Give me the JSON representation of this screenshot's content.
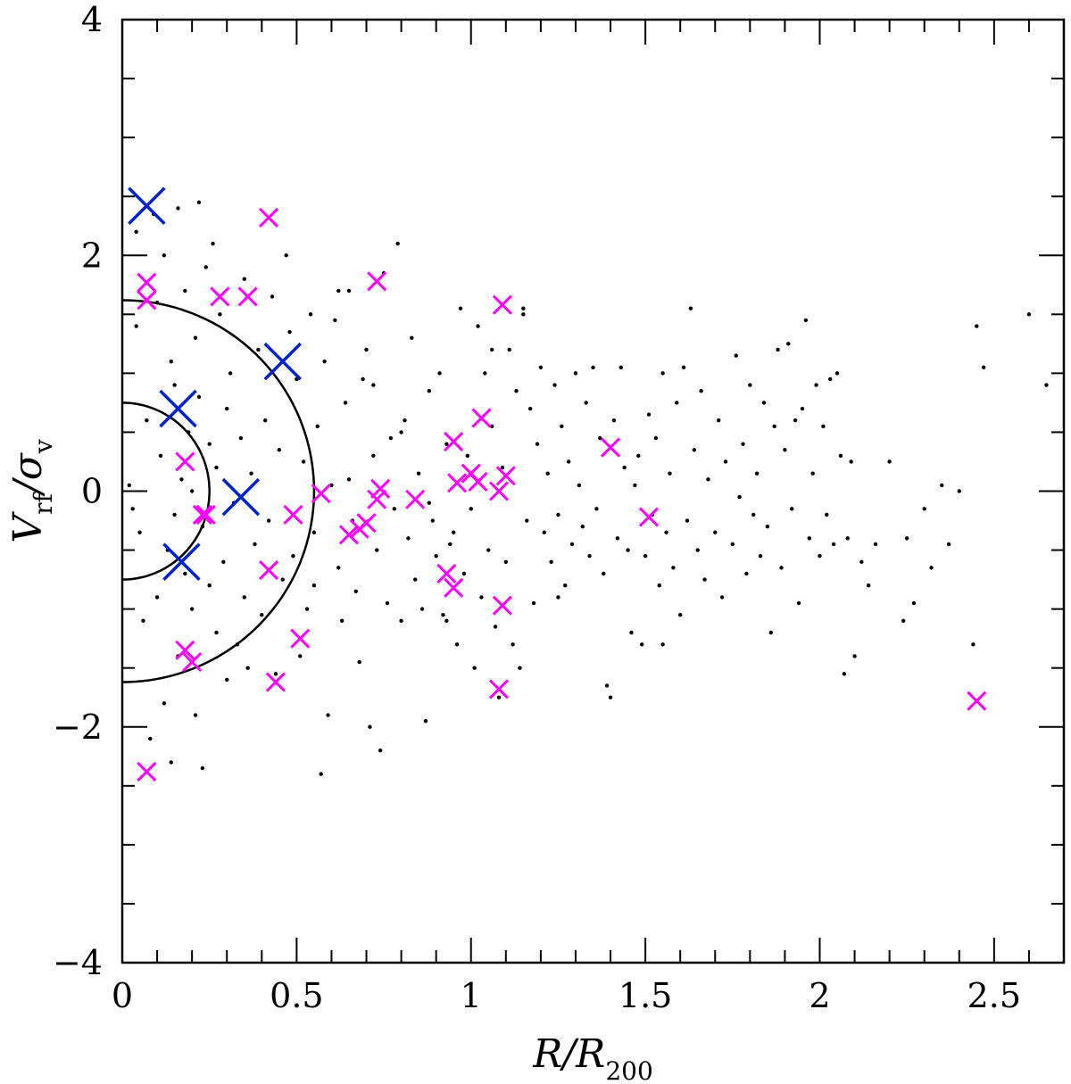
{
  "chart_data": {
    "type": "scatter",
    "title": "",
    "xlabel": {
      "main": "R/R",
      "sub": "200"
    },
    "ylabel": {
      "main": "V",
      "sub1": "rf",
      "mid": "/σ",
      "sub2": "v"
    },
    "xlim": [
      0,
      2.7
    ],
    "ylim": [
      -4,
      4
    ],
    "xticks_major": [
      0,
      0.5,
      1,
      1.5,
      2,
      2.5
    ],
    "xtick_labels": [
      "0",
      "0.5",
      "1",
      "1.5",
      "2",
      "2.5"
    ],
    "xtick_minor_step": 0.1,
    "yticks_major": [
      -4,
      -2,
      0,
      2,
      4
    ],
    "ytick_labels": [
      "−4",
      "−2",
      "0",
      "2",
      "4"
    ],
    "ytick_minor_step": 0.5,
    "grid": false,
    "colors": {
      "points": "#000000",
      "magenta": "#ff00ff",
      "blue": "#0022cc",
      "contour": "#000000"
    },
    "contours": [
      {
        "name": "inner",
        "r_max": 0.25,
        "v_max": 0.75
      },
      {
        "name": "outer",
        "r_max": 0.55,
        "v_max": 1.62
      }
    ],
    "series": [
      {
        "marker": "small-dot",
        "points": [
          [
            0.02,
            0.05
          ],
          [
            0.03,
            -0.15
          ],
          [
            0.04,
            2.2
          ],
          [
            0.05,
            -0.35
          ],
          [
            0.04,
            1.4
          ],
          [
            0.06,
            -1.1
          ],
          [
            0.07,
            0.6
          ],
          [
            0.08,
            -2.1
          ],
          [
            0.09,
            2.35
          ],
          [
            0.1,
            1.6
          ],
          [
            0.1,
            -0.9
          ],
          [
            0.11,
            0.3
          ],
          [
            0.12,
            -1.8
          ],
          [
            0.12,
            2.0
          ],
          [
            0.13,
            -0.5
          ],
          [
            0.14,
            1.1
          ],
          [
            0.14,
            -2.3
          ],
          [
            0.15,
            0.9
          ],
          [
            0.15,
            -0.2
          ],
          [
            0.16,
            -1.4
          ],
          [
            0.16,
            2.4
          ],
          [
            0.17,
            0.1
          ],
          [
            0.18,
            -0.7
          ],
          [
            0.18,
            1.7
          ],
          [
            0.19,
            0.5
          ],
          [
            0.2,
            -1.0
          ],
          [
            0.2,
            0.0
          ],
          [
            0.21,
            1.3
          ],
          [
            0.21,
            -1.9
          ],
          [
            0.22,
            0.8
          ],
          [
            0.22,
            2.45
          ],
          [
            0.23,
            -0.3
          ],
          [
            0.23,
            -2.35
          ],
          [
            0.24,
            1.9
          ],
          [
            0.25,
            -0.8
          ],
          [
            0.25,
            0.4
          ],
          [
            0.26,
            2.1
          ],
          [
            0.27,
            -1.2
          ],
          [
            0.27,
            0.2
          ],
          [
            0.28,
            1.5
          ],
          [
            0.29,
            -0.6
          ],
          [
            0.3,
            0.7
          ],
          [
            0.3,
            -1.6
          ],
          [
            0.31,
            1.0
          ],
          [
            0.32,
            -0.1
          ],
          [
            0.33,
            -1.3
          ],
          [
            0.34,
            0.45
          ],
          [
            0.35,
            1.8
          ],
          [
            0.35,
            -0.9
          ],
          [
            0.36,
            -1.5
          ],
          [
            0.37,
            0.15
          ],
          [
            0.38,
            -0.45
          ],
          [
            0.39,
            1.2
          ],
          [
            0.4,
            -1.05
          ],
          [
            0.41,
            0.6
          ],
          [
            0.42,
            -0.25
          ],
          [
            0.43,
            1.65
          ],
          [
            0.44,
            -1.55
          ],
          [
            0.45,
            0.35
          ],
          [
            0.46,
            -0.75
          ],
          [
            0.47,
            2.0
          ],
          [
            0.48,
            1.35
          ],
          [
            0.49,
            -0.55
          ],
          [
            0.5,
            0.95
          ],
          [
            0.51,
            -1.4
          ],
          [
            0.52,
            0.25
          ],
          [
            0.53,
            -1.0
          ],
          [
            0.54,
            1.5
          ],
          [
            0.55,
            -0.35
          ],
          [
            0.56,
            0.55
          ],
          [
            0.57,
            -2.4
          ],
          [
            0.58,
            1.1
          ],
          [
            0.59,
            -1.9
          ],
          [
            0.6,
            0.05
          ],
          [
            0.61,
            1.45
          ],
          [
            0.62,
            -0.65
          ],
          [
            0.63,
            -1.1
          ],
          [
            0.64,
            0.75
          ],
          [
            0.65,
            1.7
          ],
          [
            0.66,
            -0.25
          ],
          [
            0.67,
            -0.85
          ],
          [
            0.68,
            -1.45
          ],
          [
            0.69,
            0.95
          ],
          [
            0.7,
            1.2
          ],
          [
            0.71,
            -2.0
          ],
          [
            0.72,
            0.3
          ],
          [
            0.73,
            -0.5
          ],
          [
            0.74,
            -2.2
          ],
          [
            0.75,
            1.85
          ],
          [
            0.76,
            -0.95
          ],
          [
            0.77,
            0.45
          ],
          [
            0.78,
            -0.15
          ],
          [
            0.79,
            2.1
          ],
          [
            0.8,
            -1.1
          ],
          [
            0.81,
            0.6
          ],
          [
            0.82,
            -0.4
          ],
          [
            0.83,
            1.3
          ],
          [
            0.84,
            -0.75
          ],
          [
            0.85,
            0.15
          ],
          [
            0.86,
            -1.0
          ],
          [
            0.87,
            -1.95
          ],
          [
            0.88,
            0.85
          ],
          [
            0.89,
            -0.25
          ],
          [
            0.9,
            -0.55
          ],
          [
            0.91,
            1.0
          ],
          [
            0.92,
            -1.05
          ],
          [
            0.93,
            0.4
          ],
          [
            0.94,
            -0.45
          ],
          [
            0.95,
            -0.35
          ],
          [
            0.96,
            -1.3
          ],
          [
            0.97,
            1.55
          ],
          [
            0.98,
            -0.7
          ],
          [
            0.99,
            0.3
          ],
          [
            1.0,
            -0.15
          ],
          [
            1.01,
            -1.5
          ],
          [
            1.02,
            1.4
          ],
          [
            1.03,
            -0.9
          ],
          [
            1.04,
            1.0
          ],
          [
            1.05,
            -0.5
          ],
          [
            1.06,
            0.55
          ],
          [
            1.07,
            -1.15
          ],
          [
            1.08,
            -1.75
          ],
          [
            1.09,
            0.2
          ],
          [
            1.1,
            -0.6
          ],
          [
            1.11,
            1.2
          ],
          [
            1.12,
            -1.3
          ],
          [
            1.13,
            0.85
          ],
          [
            1.14,
            -1.5
          ],
          [
            1.15,
            1.5
          ],
          [
            1.16,
            -0.25
          ],
          [
            1.17,
            0.7
          ],
          [
            1.18,
            -0.95
          ],
          [
            1.19,
            0.4
          ],
          [
            1.2,
            1.05
          ],
          [
            1.21,
            -0.35
          ],
          [
            1.22,
            0.15
          ],
          [
            1.23,
            -0.6
          ],
          [
            1.24,
            0.9
          ],
          [
            1.25,
            -0.2
          ],
          [
            1.26,
            0.55
          ],
          [
            1.27,
            -0.8
          ],
          [
            1.28,
            0.25
          ],
          [
            1.29,
            -0.45
          ],
          [
            1.3,
            1.0
          ],
          [
            1.31,
            0.05
          ],
          [
            1.32,
            -0.3
          ],
          [
            1.33,
            0.75
          ],
          [
            1.34,
            -0.55
          ],
          [
            1.35,
            1.05
          ],
          [
            1.36,
            -0.15
          ],
          [
            1.37,
            0.45
          ],
          [
            1.38,
            -0.7
          ],
          [
            1.39,
            -1.65
          ],
          [
            1.4,
            -1.75
          ],
          [
            1.41,
            0.6
          ],
          [
            1.42,
            -0.4
          ],
          [
            1.43,
            1.05
          ],
          [
            1.44,
            0.2
          ],
          [
            1.45,
            -0.5
          ],
          [
            1.46,
            -1.2
          ],
          [
            1.47,
            0.05
          ],
          [
            1.48,
            0.3
          ],
          [
            1.49,
            -1.3
          ],
          [
            1.5,
            -0.55
          ],
          [
            1.51,
            0.65
          ],
          [
            1.52,
            -0.2
          ],
          [
            1.53,
            0.45
          ],
          [
            1.54,
            -0.8
          ],
          [
            1.55,
            1.0
          ],
          [
            1.56,
            -0.35
          ],
          [
            1.57,
            0.15
          ],
          [
            1.58,
            -0.65
          ],
          [
            1.59,
            0.75
          ],
          [
            1.6,
            -1.05
          ],
          [
            1.61,
            1.05
          ],
          [
            1.62,
            -0.25
          ],
          [
            1.63,
            1.55
          ],
          [
            1.64,
            0.35
          ],
          [
            1.65,
            -0.5
          ],
          [
            1.66,
            0.85
          ],
          [
            1.67,
            -0.75
          ],
          [
            1.68,
            0.1
          ],
          [
            1.7,
            -0.35
          ],
          [
            1.71,
            0.6
          ],
          [
            1.72,
            -0.9
          ],
          [
            1.73,
            0.25
          ],
          [
            1.75,
            -0.45
          ],
          [
            1.76,
            1.15
          ],
          [
            1.77,
            -0.05
          ],
          [
            1.78,
            0.4
          ],
          [
            1.79,
            -0.7
          ],
          [
            1.8,
            0.9
          ],
          [
            1.81,
            -0.2
          ],
          [
            1.82,
            0.15
          ],
          [
            1.83,
            -0.55
          ],
          [
            1.84,
            0.75
          ],
          [
            1.85,
            -0.3
          ],
          [
            1.86,
            -1.2
          ],
          [
            1.87,
            0.55
          ],
          [
            1.88,
            1.2
          ],
          [
            1.89,
            -0.65
          ],
          [
            1.9,
            0.35
          ],
          [
            1.91,
            1.25
          ],
          [
            1.92,
            -0.15
          ],
          [
            1.93,
            0.6
          ],
          [
            1.94,
            -0.95
          ],
          [
            1.95,
            0.7
          ],
          [
            1.96,
            1.45
          ],
          [
            1.97,
            -0.4
          ],
          [
            1.98,
            0.15
          ],
          [
            1.99,
            0.9
          ],
          [
            2.0,
            -0.55
          ],
          [
            2.01,
            0.55
          ],
          [
            2.02,
            -0.2
          ],
          [
            2.03,
            0.95
          ],
          [
            2.04,
            -0.45
          ],
          [
            2.05,
            1.0
          ],
          [
            2.06,
            0.3
          ],
          [
            2.07,
            -1.55
          ],
          [
            2.08,
            -0.4
          ],
          [
            2.09,
            0.25
          ],
          [
            2.1,
            -1.4
          ],
          [
            2.12,
            -0.6
          ],
          [
            2.14,
            -0.8
          ],
          [
            2.16,
            -0.45
          ],
          [
            2.2,
            0.25
          ],
          [
            2.24,
            -1.1
          ],
          [
            2.25,
            -0.4
          ],
          [
            2.27,
            -0.95
          ],
          [
            2.3,
            -0.15
          ],
          [
            2.32,
            -0.65
          ],
          [
            2.35,
            0.05
          ],
          [
            2.37,
            -0.45
          ],
          [
            2.4,
            0.0
          ],
          [
            2.44,
            -1.3
          ],
          [
            2.45,
            1.4
          ],
          [
            2.47,
            1.05
          ],
          [
            2.6,
            1.5
          ],
          [
            2.65,
            0.9
          ],
          [
            1.55,
            -1.3
          ],
          [
            1.15,
            1.55
          ],
          [
            0.62,
            1.7
          ],
          [
            0.72,
            0.9
          ],
          [
            0.55,
            -0.8
          ],
          [
            0.65,
            0.1
          ],
          [
            0.88,
            -0.1
          ],
          [
            0.93,
            -1.1
          ],
          [
            1.06,
            1.2
          ],
          [
            1.25,
            -0.9
          ],
          [
            0.8,
            0.5
          ]
        ]
      },
      {
        "marker": "magenta-cross",
        "points": [
          [
            0.07,
            1.77
          ],
          [
            0.07,
            1.62
          ],
          [
            0.07,
            -2.38
          ],
          [
            0.18,
            0.25
          ],
          [
            0.18,
            -1.35
          ],
          [
            0.2,
            -1.45
          ],
          [
            0.23,
            -0.2
          ],
          [
            0.24,
            -0.2
          ],
          [
            0.28,
            1.65
          ],
          [
            0.36,
            1.65
          ],
          [
            0.42,
            2.32
          ],
          [
            0.42,
            -0.67
          ],
          [
            0.44,
            -1.62
          ],
          [
            0.49,
            -0.2
          ],
          [
            0.51,
            -1.25
          ],
          [
            0.57,
            -0.02
          ],
          [
            0.65,
            -0.37
          ],
          [
            0.68,
            -0.32
          ],
          [
            0.7,
            -0.27
          ],
          [
            0.73,
            -0.07
          ],
          [
            0.74,
            0.02
          ],
          [
            0.73,
            1.78
          ],
          [
            0.84,
            -0.07
          ],
          [
            0.93,
            -0.7
          ],
          [
            0.95,
            -0.82
          ],
          [
            0.95,
            0.42
          ],
          [
            0.96,
            0.07
          ],
          [
            1.0,
            0.15
          ],
          [
            1.02,
            0.08
          ],
          [
            1.03,
            0.62
          ],
          [
            1.08,
            0.0
          ],
          [
            1.1,
            0.13
          ],
          [
            1.09,
            1.58
          ],
          [
            1.09,
            -0.97
          ],
          [
            1.08,
            -1.68
          ],
          [
            1.4,
            0.37
          ],
          [
            1.51,
            -0.22
          ],
          [
            2.45,
            -1.78
          ]
        ]
      },
      {
        "marker": "blue-cross",
        "points": [
          [
            0.07,
            2.42
          ],
          [
            0.16,
            0.7
          ],
          [
            0.17,
            -0.6
          ],
          [
            0.34,
            -0.05
          ],
          [
            0.46,
            1.1
          ]
        ]
      }
    ]
  }
}
